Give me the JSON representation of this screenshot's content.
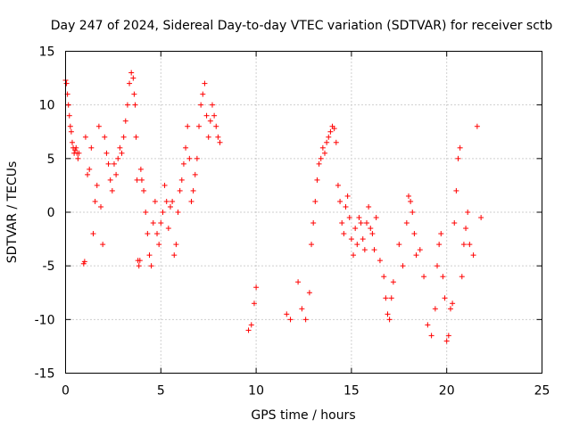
{
  "chart_data": {
    "type": "scatter",
    "title": "Day 247 of 2024, Sidereal Day-to-day VTEC variation (SDTVAR) for receiver sctb",
    "xlabel": "GPS time / hours",
    "ylabel": "SDTVAR / TECUs",
    "xlim": [
      0,
      25
    ],
    "ylim": [
      -15,
      15
    ],
    "xticks": [
      0,
      5,
      10,
      15,
      20,
      25
    ],
    "yticks": [
      -15,
      -10,
      -5,
      0,
      5,
      10,
      15
    ],
    "xtick_labels": [
      "0",
      "5",
      "10",
      "15",
      "20",
      "25"
    ],
    "ytick_labels": [
      "-15",
      "-10",
      "-5",
      "0",
      "5",
      "10",
      "15"
    ],
    "grid": true,
    "marker": "+",
    "color": "#ff0000",
    "series": [
      {
        "name": "sctb",
        "x": [
          0.0,
          0.05,
          0.1,
          0.15,
          0.2,
          0.25,
          0.3,
          0.35,
          0.4,
          0.45,
          0.5,
          0.55,
          0.6,
          0.65,
          0.7,
          0.95,
          1.0,
          1.05,
          1.15,
          1.25,
          1.35,
          1.45,
          1.55,
          1.65,
          1.75,
          1.85,
          1.95,
          2.05,
          2.15,
          2.25,
          2.35,
          2.45,
          2.55,
          2.65,
          2.75,
          2.85,
          2.95,
          3.05,
          3.15,
          3.25,
          3.35,
          3.45,
          3.55,
          3.6,
          3.65,
          3.7,
          3.75,
          3.8,
          3.85,
          3.9,
          3.95,
          4.0,
          4.1,
          4.2,
          4.3,
          4.4,
          4.5,
          4.6,
          4.7,
          4.8,
          4.9,
          5.0,
          5.1,
          5.2,
          5.3,
          5.4,
          5.5,
          5.6,
          5.7,
          5.8,
          5.9,
          6.0,
          6.1,
          6.2,
          6.3,
          6.4,
          6.5,
          6.6,
          6.7,
          6.8,
          6.9,
          7.0,
          7.1,
          7.2,
          7.3,
          7.4,
          7.5,
          7.6,
          7.7,
          7.8,
          7.9,
          8.0,
          8.1,
          9.6,
          9.75,
          9.9,
          10.0,
          11.6,
          11.8,
          12.2,
          12.4,
          12.6,
          12.8,
          12.9,
          13.0,
          13.1,
          13.2,
          13.3,
          13.4,
          13.5,
          13.6,
          13.7,
          13.8,
          13.9,
          14.0,
          14.1,
          14.2,
          14.3,
          14.4,
          14.5,
          14.6,
          14.7,
          14.8,
          14.9,
          15.0,
          15.1,
          15.2,
          15.3,
          15.4,
          15.5,
          15.6,
          15.7,
          15.8,
          15.9,
          16.0,
          16.1,
          16.2,
          16.3,
          16.5,
          16.7,
          16.8,
          16.9,
          17.0,
          17.1,
          17.2,
          17.5,
          17.7,
          17.9,
          18.0,
          18.1,
          18.2,
          18.3,
          18.4,
          18.6,
          18.8,
          19.0,
          19.2,
          19.4,
          19.5,
          19.6,
          19.7,
          19.8,
          19.9,
          20.0,
          20.1,
          20.2,
          20.3,
          20.4,
          20.5,
          20.6,
          20.7,
          20.8,
          20.9,
          21.0,
          21.1,
          21.2,
          21.4,
          21.6,
          21.8
        ],
        "y": [
          12.3,
          12.0,
          11.0,
          10.0,
          9.0,
          8.0,
          7.5,
          6.5,
          6.0,
          5.5,
          5.8,
          6.0,
          5.5,
          5.0,
          5.5,
          -4.8,
          -4.6,
          7.0,
          3.5,
          4.0,
          6.0,
          -2.0,
          1.0,
          2.5,
          8.0,
          0.5,
          -3.0,
          7.0,
          5.5,
          4.5,
          3.0,
          2.0,
          4.5,
          3.5,
          5.0,
          6.0,
          5.5,
          7.0,
          8.5,
          10.0,
          12.0,
          13.0,
          12.5,
          11.0,
          10.0,
          7.0,
          3.0,
          -4.5,
          -5.0,
          -4.5,
          4.0,
          3.0,
          2.0,
          0.0,
          -2.0,
          -4.0,
          -5.0,
          -1.0,
          1.0,
          -2.0,
          -3.0,
          -1.0,
          0.0,
          2.5,
          1.0,
          -1.5,
          0.5,
          1.0,
          -4.0,
          -3.0,
          0.0,
          2.0,
          3.0,
          4.5,
          6.0,
          8.0,
          5.0,
          1.0,
          2.0,
          3.5,
          5.0,
          8.0,
          10.0,
          11.0,
          12.0,
          9.0,
          7.0,
          8.5,
          10.0,
          9.0,
          8.0,
          7.0,
          6.5,
          -11.0,
          -10.5,
          -8.5,
          -7.0,
          -9.5,
          -10.0,
          -6.5,
          -9.0,
          -10.0,
          -7.5,
          -3.0,
          -1.0,
          1.0,
          3.0,
          4.5,
          5.0,
          6.0,
          5.5,
          6.5,
          7.0,
          7.5,
          8.0,
          7.8,
          6.5,
          2.5,
          1.0,
          -1.0,
          -2.0,
          0.5,
          1.5,
          -0.5,
          -2.5,
          -4.0,
          -1.5,
          -3.0,
          -0.5,
          -1.0,
          -2.5,
          -3.5,
          -1.0,
          0.5,
          -1.5,
          -2.0,
          -3.5,
          -0.5,
          -4.5,
          -6.0,
          -8.0,
          -9.5,
          -10.0,
          -8.0,
          -6.5,
          -3.0,
          -5.0,
          -1.0,
          1.5,
          1.0,
          0.0,
          -2.0,
          -4.0,
          -3.5,
          -6.0,
          -10.5,
          -11.5,
          -9.0,
          -5.0,
          -3.0,
          -2.0,
          -6.0,
          -8.0,
          -12.0,
          -11.5,
          -9.0,
          -8.5,
          -1.0,
          2.0,
          5.0,
          6.0,
          -6.0,
          -3.0,
          -1.5,
          0.0,
          -3.0,
          -4.0,
          8.0,
          -0.5
        ]
      }
    ]
  }
}
